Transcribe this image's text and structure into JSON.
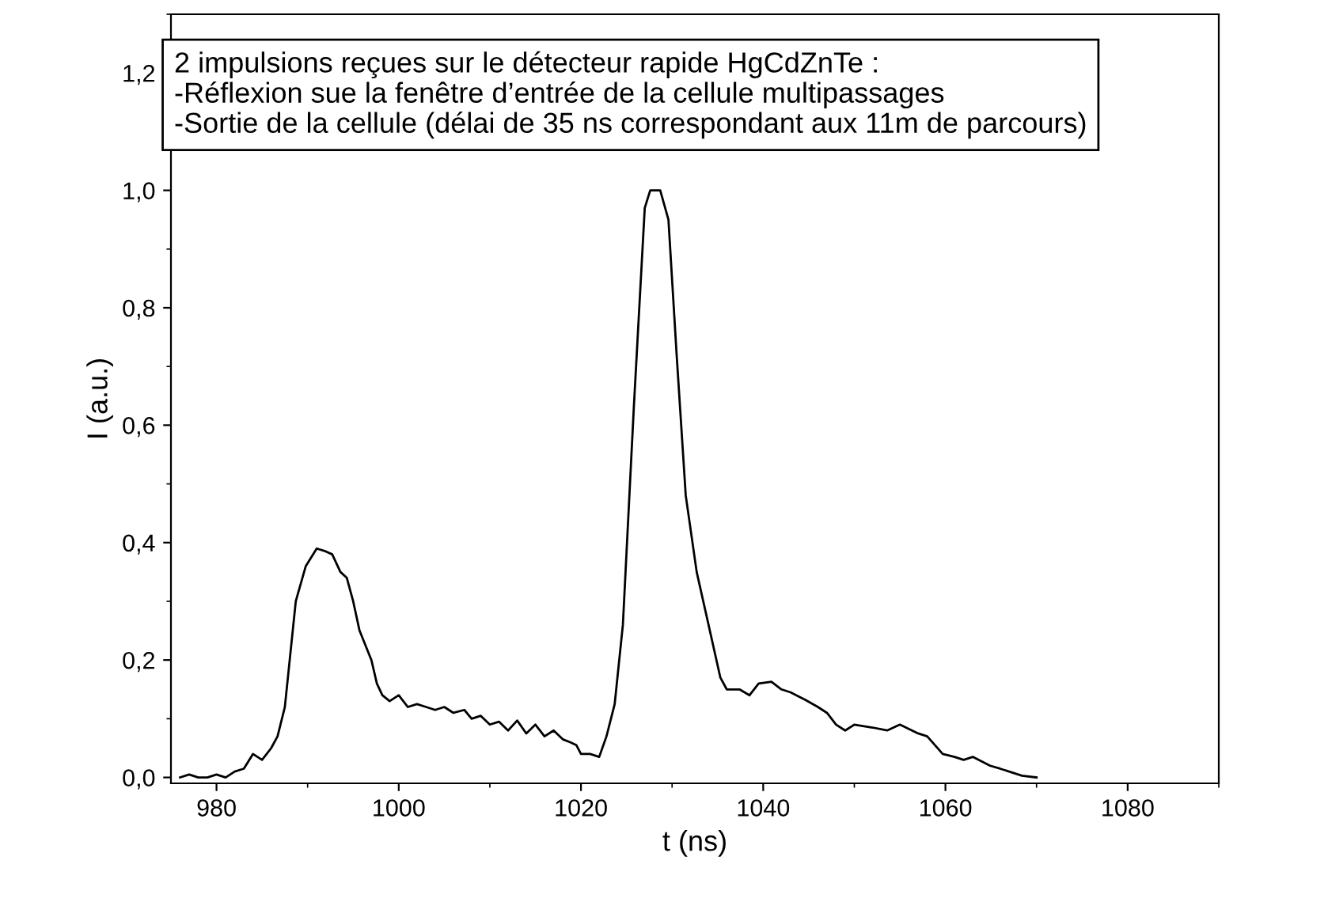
{
  "chart_data": {
    "type": "line",
    "xlabel": "t (ns)",
    "ylabel": "I (a.u.)",
    "annotations": [
      "2 impulsions reçues sur le détecteur rapide HgCdZnTe :\n-Réflexion sue la fenêtre d’entrée de la cellule multipassages\n-Sortie de la cellule (délai de 35 ns correspondant aux 11m de parcours)"
    ],
    "series": [
      {
        "color": "#000000",
        "x": [
          976,
          977,
          978,
          979,
          980,
          981,
          982,
          983,
          984,
          985,
          986,
          986.7,
          987.5,
          988.7,
          989.8,
          991,
          992,
          992.7,
          993.6,
          994.3,
          995,
          995.7,
          997,
          997.6,
          998.2,
          999,
          1000,
          1001,
          1002,
          1003,
          1004,
          1005,
          1006,
          1007.2,
          1008,
          1009,
          1010,
          1011,
          1012,
          1013,
          1014,
          1015,
          1016,
          1017,
          1018,
          1018.8,
          1019.5,
          1020,
          1021,
          1022,
          1022.8,
          1023.7,
          1024.6,
          1025.8,
          1027,
          1027.6,
          1028.7,
          1029.6,
          1030.5,
          1031.5,
          1032.7,
          1034,
          1035.3,
          1036,
          1037.4,
          1038.5,
          1039.5,
          1040.9,
          1042,
          1043,
          1044.4,
          1046,
          1047,
          1048,
          1049,
          1050,
          1052,
          1053.6,
          1055,
          1057,
          1058,
          1059.7,
          1061,
          1062,
          1063,
          1064.9,
          1066,
          1068.4,
          1070
        ],
        "values": [
          0.0,
          0.005,
          0.0,
          0.0,
          0.005,
          0.0,
          0.01,
          0.015,
          0.04,
          0.03,
          0.05,
          0.07,
          0.12,
          0.3,
          0.36,
          0.39,
          0.385,
          0.38,
          0.35,
          0.34,
          0.3,
          0.25,
          0.2,
          0.16,
          0.14,
          0.13,
          0.14,
          0.12,
          0.125,
          0.12,
          0.115,
          0.12,
          0.11,
          0.115,
          0.1,
          0.105,
          0.09,
          0.095,
          0.08,
          0.097,
          0.075,
          0.09,
          0.07,
          0.08,
          0.065,
          0.06,
          0.055,
          0.04,
          0.04,
          0.035,
          0.07,
          0.125,
          0.26,
          0.63,
          0.97,
          1.0,
          1.0,
          0.95,
          0.72,
          0.48,
          0.35,
          0.26,
          0.17,
          0.15,
          0.15,
          0.14,
          0.16,
          0.163,
          0.15,
          0.145,
          0.134,
          0.12,
          0.11,
          0.09,
          0.08,
          0.09,
          0.085,
          0.08,
          0.09,
          0.075,
          0.07,
          0.04,
          0.035,
          0.03,
          0.035,
          0.02,
          0.015,
          0.003,
          0.0
        ]
      }
    ],
    "xlim": [
      975,
      1090
    ],
    "ylim": [
      -0.01,
      1.3
    ],
    "xticks": [
      980,
      1000,
      1020,
      1040,
      1060,
      1080
    ],
    "yticks": [
      {
        "value": 0.0,
        "label": "0,0"
      },
      {
        "value": 0.2,
        "label": "0,2"
      },
      {
        "value": 0.4,
        "label": "0,4"
      },
      {
        "value": 0.6,
        "label": "0,6"
      },
      {
        "value": 0.8,
        "label": "0,8"
      },
      {
        "value": 1.0,
        "label": "1,0"
      },
      {
        "value": 1.2,
        "label": "1,2"
      }
    ],
    "grid": false,
    "legend": false,
    "line_style": "solid",
    "marker": "none"
  }
}
